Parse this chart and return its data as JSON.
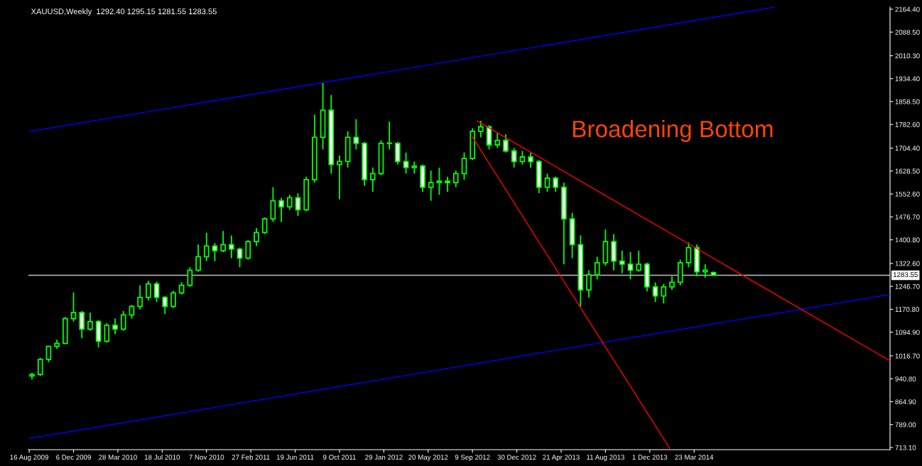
{
  "chart_data": {
    "type": "candlestick",
    "title": "XAUUSD,Weekly  1292.40 1295.15 1281.55 1283.55",
    "color": "#00ff00",
    "x": [
      "2009-08-23",
      "2009-09-13",
      "2009-10-04",
      "2009-10-25",
      "2009-11-15",
      "2009-12-06",
      "2009-12-27",
      "2010-01-17",
      "2010-02-07",
      "2010-02-28",
      "2010-03-21",
      "2010-04-11",
      "2010-05-02",
      "2010-05-23",
      "2010-06-13",
      "2010-07-04",
      "2010-07-25",
      "2010-08-15",
      "2010-09-05",
      "2010-09-26",
      "2010-10-17",
      "2010-11-07",
      "2010-11-28",
      "2010-12-19",
      "2011-01-09",
      "2011-01-30",
      "2011-02-20",
      "2011-03-13",
      "2011-04-03",
      "2011-04-24",
      "2011-05-15",
      "2011-06-05",
      "2011-06-26",
      "2011-07-17",
      "2011-08-07",
      "2011-08-28",
      "2011-09-18",
      "2011-10-09",
      "2011-10-30",
      "2011-11-20",
      "2011-12-11",
      "2012-01-01",
      "2012-01-22",
      "2012-02-12",
      "2012-03-04",
      "2012-03-25",
      "2012-04-15",
      "2012-05-06",
      "2012-05-27",
      "2012-06-17",
      "2012-07-08",
      "2012-07-29",
      "2012-08-19",
      "2012-09-09",
      "2012-09-30",
      "2012-10-21",
      "2012-11-11",
      "2012-12-02",
      "2012-12-23",
      "2013-01-13",
      "2013-02-03",
      "2013-02-24",
      "2013-03-17",
      "2013-04-07",
      "2013-04-28",
      "2013-05-19",
      "2013-06-09",
      "2013-06-30",
      "2013-07-21",
      "2013-08-11",
      "2013-09-01",
      "2013-09-22",
      "2013-10-13",
      "2013-11-03",
      "2013-11-24",
      "2013-12-15",
      "2014-01-05",
      "2014-01-26",
      "2014-02-16",
      "2014-03-09",
      "2014-03-30",
      "2014-04-20",
      "2014-05-11"
    ],
    "ohlc": [
      [
        950,
        960,
        938,
        955
      ],
      [
        955,
        1010,
        950,
        1005
      ],
      [
        1005,
        1050,
        995,
        1048
      ],
      [
        1048,
        1070,
        1040,
        1058
      ],
      [
        1058,
        1145,
        1055,
        1140
      ],
      [
        1140,
        1227,
        1130,
        1160
      ],
      [
        1160,
        1165,
        1075,
        1105
      ],
      [
        1105,
        1160,
        1100,
        1130
      ],
      [
        1130,
        1135,
        1045,
        1065
      ],
      [
        1065,
        1125,
        1060,
        1118
      ],
      [
        1118,
        1140,
        1088,
        1105
      ],
      [
        1105,
        1165,
        1100,
        1152
      ],
      [
        1152,
        1185,
        1140,
        1180
      ],
      [
        1180,
        1250,
        1170,
        1210
      ],
      [
        1210,
        1265,
        1200,
        1255
      ],
      [
        1255,
        1262,
        1195,
        1210
      ],
      [
        1210,
        1215,
        1155,
        1180
      ],
      [
        1180,
        1232,
        1175,
        1225
      ],
      [
        1225,
        1260,
        1220,
        1250
      ],
      [
        1250,
        1310,
        1245,
        1300
      ],
      [
        1300,
        1385,
        1295,
        1345
      ],
      [
        1345,
        1424,
        1330,
        1380
      ],
      [
        1380,
        1390,
        1330,
        1365
      ],
      [
        1365,
        1430,
        1360,
        1385
      ],
      [
        1385,
        1415,
        1340,
        1370
      ],
      [
        1370,
        1375,
        1310,
        1340
      ],
      [
        1340,
        1400,
        1335,
        1395
      ],
      [
        1395,
        1440,
        1380,
        1425
      ],
      [
        1425,
        1475,
        1420,
        1470
      ],
      [
        1470,
        1575,
        1460,
        1530
      ],
      [
        1530,
        1540,
        1460,
        1510
      ],
      [
        1510,
        1550,
        1500,
        1540
      ],
      [
        1540,
        1555,
        1480,
        1500
      ],
      [
        1500,
        1610,
        1495,
        1600
      ],
      [
        1600,
        1815,
        1590,
        1740
      ],
      [
        1740,
        1920,
        1700,
        1830
      ],
      [
        1830,
        1880,
        1620,
        1650
      ],
      [
        1650,
        1680,
        1535,
        1660
      ],
      [
        1660,
        1760,
        1640,
        1740
      ],
      [
        1740,
        1800,
        1700,
        1720
      ],
      [
        1720,
        1725,
        1580,
        1600
      ],
      [
        1600,
        1640,
        1560,
        1620
      ],
      [
        1620,
        1730,
        1615,
        1720
      ],
      [
        1720,
        1792,
        1700,
        1720
      ],
      [
        1720,
        1725,
        1650,
        1660
      ],
      [
        1660,
        1690,
        1620,
        1640
      ],
      [
        1640,
        1660,
        1620,
        1645
      ],
      [
        1645,
        1650,
        1560,
        1575
      ],
      [
        1575,
        1630,
        1530,
        1590
      ],
      [
        1590,
        1640,
        1550,
        1595
      ],
      [
        1595,
        1610,
        1560,
        1590
      ],
      [
        1590,
        1630,
        1575,
        1620
      ],
      [
        1620,
        1690,
        1600,
        1670
      ],
      [
        1670,
        1770,
        1665,
        1760
      ],
      [
        1760,
        1795,
        1740,
        1775
      ],
      [
        1775,
        1780,
        1700,
        1715
      ],
      [
        1715,
        1755,
        1705,
        1730
      ],
      [
        1730,
        1750,
        1690,
        1695
      ],
      [
        1695,
        1705,
        1640,
        1660
      ],
      [
        1660,
        1695,
        1650,
        1675
      ],
      [
        1675,
        1690,
        1640,
        1660
      ],
      [
        1660,
        1665,
        1555,
        1575
      ],
      [
        1575,
        1620,
        1560,
        1605
      ],
      [
        1605,
        1610,
        1560,
        1575
      ],
      [
        1575,
        1590,
        1320,
        1470
      ],
      [
        1470,
        1490,
        1340,
        1385
      ],
      [
        1385,
        1415,
        1180,
        1235
      ],
      [
        1235,
        1300,
        1210,
        1285
      ],
      [
        1285,
        1345,
        1270,
        1325
      ],
      [
        1325,
        1435,
        1315,
        1395
      ],
      [
        1395,
        1420,
        1300,
        1330
      ],
      [
        1330,
        1365,
        1290,
        1320
      ],
      [
        1320,
        1360,
        1270,
        1300
      ],
      [
        1300,
        1365,
        1295,
        1320
      ],
      [
        1320,
        1325,
        1230,
        1245
      ],
      [
        1245,
        1260,
        1195,
        1215
      ],
      [
        1215,
        1255,
        1190,
        1245
      ],
      [
        1245,
        1280,
        1235,
        1260
      ],
      [
        1260,
        1335,
        1250,
        1325
      ],
      [
        1325,
        1392,
        1310,
        1375
      ],
      [
        1375,
        1385,
        1280,
        1295
      ],
      [
        1295,
        1320,
        1275,
        1300
      ],
      [
        1292.4,
        1295.15,
        1281.55,
        1283.55
      ]
    ],
    "series": [
      {
        "type": "line",
        "color": "#0000ff",
        "x": [
          "2009-08-16",
          "2014-10-12"
        ],
        "values": [
          1759,
          2171
        ]
      },
      {
        "type": "line",
        "color": "#0000ff",
        "x": [
          "2009-08-16",
          "2015-07-31"
        ],
        "values": [
          743,
          1220
        ]
      },
      {
        "type": "line",
        "color": "#ff0000",
        "x": [
          "2012-09-21",
          "2015-07-31"
        ],
        "values": [
          1794,
          1000
        ]
      },
      {
        "type": "line",
        "color": "#ff0000",
        "x": [
          "2012-09-08",
          "2014-01-20"
        ],
        "values": [
          1743,
          711
        ]
      }
    ],
    "ref_lines": [
      {
        "axis": "y",
        "value": 1283.55,
        "label": "1283.55",
        "color": "#c0c0c0"
      }
    ],
    "annotations": [
      "Broadening Bottom"
    ],
    "xlim": [
      "2009-08-14",
      "2015-07-31"
    ],
    "xticks": [
      {
        "value": "2009-08-16",
        "label": "16 Aug 2009"
      },
      {
        "value": "2009-12-06",
        "label": "6 Dec 2009"
      },
      {
        "value": "2010-03-28",
        "label": "28 Mar 2010"
      },
      {
        "value": "2010-07-18",
        "label": "18 Jul 2010"
      },
      {
        "value": "2010-11-07",
        "label": "7 Nov 2010"
      },
      {
        "value": "2011-02-27",
        "label": "27 Feb 2011"
      },
      {
        "value": "2011-06-19",
        "label": "19 Jun 2011"
      },
      {
        "value": "2011-10-09",
        "label": "9 Oct 2011"
      },
      {
        "value": "2012-01-29",
        "label": "29 Jan 2012"
      },
      {
        "value": "2012-05-20",
        "label": "20 May 2012"
      },
      {
        "value": "2012-09-09",
        "label": "9 Sep 2012"
      },
      {
        "value": "2012-12-30",
        "label": "30 Dec 2012"
      },
      {
        "value": "2013-04-21",
        "label": "21 Apr 2013"
      },
      {
        "value": "2013-08-11",
        "label": "11 Aug 2013"
      },
      {
        "value": "2013-12-01",
        "label": "1 Dec 2013"
      },
      {
        "value": "2014-03-23",
        "label": "23 Mar 2014"
      }
    ],
    "ylim": [
      706,
      2171.3
    ],
    "yticks": [
      {
        "value": 2164.4,
        "label": "2164.40"
      },
      {
        "value": 2088.5,
        "label": "2088.50"
      },
      {
        "value": 2010.3,
        "label": "2010.30"
      },
      {
        "value": 1934.4,
        "label": "1934.40"
      },
      {
        "value": 1858.5,
        "label": "1858.50"
      },
      {
        "value": 1782.6,
        "label": "1782.60"
      },
      {
        "value": 1704.4,
        "label": "1704.40"
      },
      {
        "value": 1628.5,
        "label": "1628.50"
      },
      {
        "value": 1552.6,
        "label": "1552.60"
      },
      {
        "value": 1476.7,
        "label": "1476.70"
      },
      {
        "value": 1400.8,
        "label": "1400.80"
      },
      {
        "value": 1322.6,
        "label": "1322.60"
      },
      {
        "value": 1246.7,
        "label": "1246.70"
      },
      {
        "value": 1170.8,
        "label": "1170.80"
      },
      {
        "value": 1094.9,
        "label": "1094.90"
      },
      {
        "value": 1016.7,
        "label": "1016.70"
      },
      {
        "value": 940.8,
        "label": "940.80"
      },
      {
        "value": 864.9,
        "label": "864.90"
      },
      {
        "value": 789.0,
        "label": "789.00"
      },
      {
        "value": 713.1,
        "label": "713.10"
      }
    ],
    "grid": false
  }
}
